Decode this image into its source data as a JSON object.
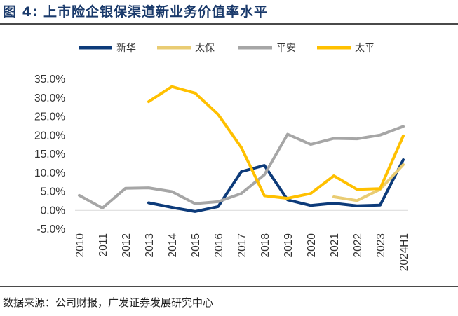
{
  "figure": {
    "title": "图 4:  上市险企银保渠道新业务价值率水平",
    "source": "数据来源：公司财报，广发证券发展研究中心"
  },
  "chart_data": {
    "type": "line",
    "title": "",
    "xlabel": "",
    "ylabel": "",
    "categories": [
      "2010",
      "2011",
      "2012",
      "2013",
      "2014",
      "2015",
      "2016",
      "2017",
      "2018",
      "2019",
      "2020",
      "2021",
      "2022",
      "2023",
      "2024H1"
    ],
    "y_tick_labels": [
      "35.0%",
      "30.0%",
      "25.0%",
      "20.0%",
      "15.0%",
      "10.0%",
      "5.0%",
      "0.0%",
      "-5.0%"
    ],
    "ylim": [
      -5,
      35
    ],
    "y_unit": "%",
    "grid": false,
    "legend_position": "top",
    "series": [
      {
        "name": "新华",
        "color": "#0d3b7a",
        "values": [
          null,
          null,
          null,
          2.0,
          0.8,
          -0.3,
          1.0,
          10.3,
          12.0,
          2.8,
          1.3,
          1.9,
          1.2,
          1.4,
          13.5
        ]
      },
      {
        "name": "太保",
        "color": "#e9cc73",
        "values": [
          null,
          null,
          null,
          null,
          null,
          null,
          null,
          null,
          null,
          null,
          null,
          3.6,
          2.6,
          5.6,
          12.2
        ]
      },
      {
        "name": "平安",
        "color": "#a6a6a6",
        "values": [
          4.0,
          0.6,
          5.9,
          6.0,
          5.0,
          1.8,
          2.3,
          4.5,
          9.5,
          20.3,
          17.6,
          19.2,
          19.1,
          20.1,
          22.4
        ]
      },
      {
        "name": "太平",
        "color": "#ffc000",
        "values": [
          null,
          null,
          null,
          29.0,
          33.0,
          31.3,
          25.6,
          16.8,
          3.9,
          3.2,
          4.5,
          9.2,
          5.6,
          5.8,
          19.9
        ]
      }
    ]
  }
}
